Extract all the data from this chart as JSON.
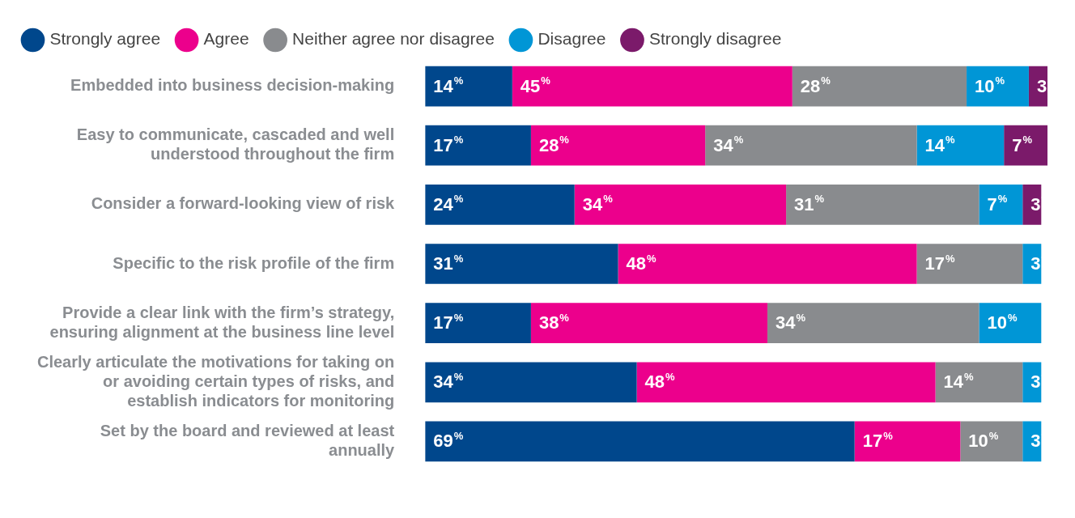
{
  "chart_data": {
    "type": "bar",
    "orientation": "horizontal",
    "stacked": true,
    "legend": "top left",
    "tick_labels": "y",
    "xlim": [
      0,
      100
    ],
    "categories": [
      "Embedded into business decision-making",
      "Easy to communicate, cascaded and well understood throughout the firm",
      "Consider a forward-looking view of risk",
      "Specific to the risk profile of the firm",
      "Provide a clear link with the firm’s strategy, ensuring alignment at the business line level",
      "Clearly articulate the motivations for taking on or avoiding certain types of risks, and establish indicators for monitoring",
      "Set by the board and reviewed at least annually"
    ],
    "series": [
      {
        "name": "Strongly agree",
        "color": "#00478c",
        "values": [
          14,
          17,
          24,
          31,
          17,
          34,
          69
        ],
        "value_labels": [
          "14$^{%}$",
          "17$^{%}$",
          "24$^{%}$",
          "31$^{%}$",
          "17$^{%}$",
          "34$^{%}$",
          "69$^{%}$"
        ]
      },
      {
        "name": "Agree",
        "color": "#ec008c",
        "values": [
          45,
          28,
          34,
          48,
          38,
          48,
          17
        ],
        "value_labels": [
          "45$^{%}$",
          "28$^{%}$",
          "34$^{%}$",
          "48$^{%}$",
          "38$^{%}$",
          "48$^{%}$",
          "17$^{%}$"
        ]
      },
      {
        "name": "Neither agree nor disagree",
        "color": "#898b8e",
        "values": [
          28,
          34,
          31,
          17,
          34,
          14,
          10
        ],
        "value_labels": [
          "28$^{%}$",
          "34$^{%}$",
          "31$^{%}$",
          "17$^{%}$",
          "34$^{%}$",
          "14$^{%}$",
          "10$^{%}$"
        ]
      },
      {
        "name": "Disagree",
        "color": "#0096d6",
        "values": [
          10,
          14,
          7,
          3,
          10,
          3,
          3
        ],
        "value_labels": [
          "10$^{%}$",
          "14$^{%}$",
          "7$^{%}$",
          "3$^{%}$",
          "10$^{%}$",
          "3$^{%}$",
          "3$^{%}$"
        ]
      },
      {
        "name": "Strongly disagree",
        "color": "#7b1a6a",
        "values": [
          3,
          7,
          3,
          null,
          null,
          null,
          null
        ],
        "value_labels": [
          "3$^{%}$",
          "7$^{%}$",
          "3$^{%}$",
          null,
          null,
          null,
          null
        ]
      }
    ]
  }
}
